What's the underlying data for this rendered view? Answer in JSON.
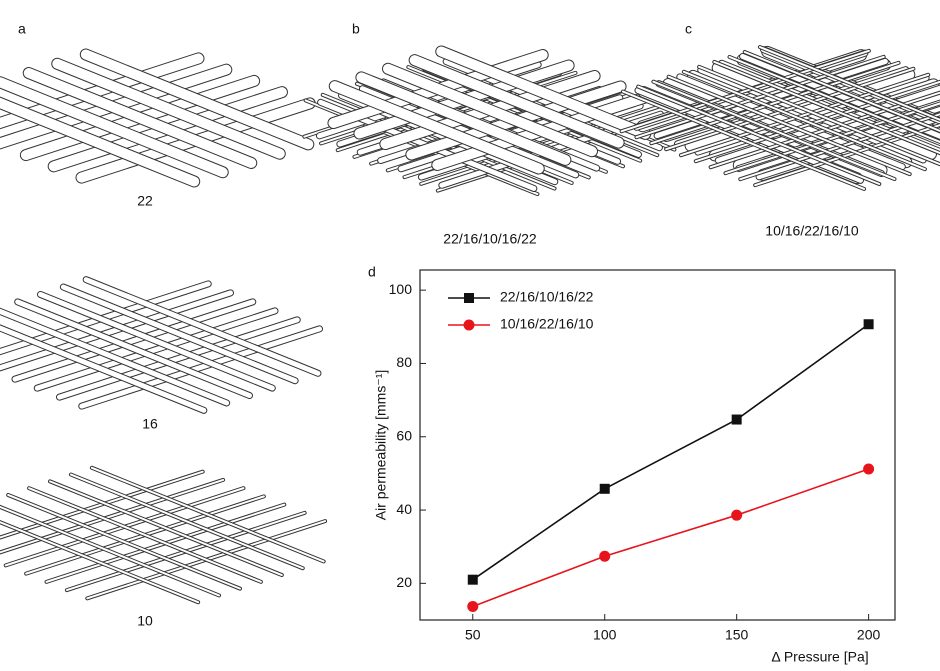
{
  "panels": {
    "a": {
      "label": "a",
      "caption_top": "22",
      "caption_middle": "16",
      "caption_bottom": "10"
    },
    "b": {
      "label": "b",
      "caption": "22/16/10/16/22"
    },
    "c": {
      "label": "c",
      "caption": "10/16/22/16/10"
    },
    "d": {
      "label": "d"
    }
  },
  "chart_data": {
    "type": "line",
    "x_label": "Δ Pressure [Pa]",
    "y_label": "Air permeability [mms⁻¹]",
    "x": [
      50,
      100,
      150,
      200
    ],
    "series": [
      {
        "name": "22/16/10/16/22",
        "color": "#111111",
        "marker": "square",
        "values": [
          21,
          45.8,
          64.7,
          90.7
        ]
      },
      {
        "name": "10/16/22/16/10",
        "color": "#e8141c",
        "marker": "circle",
        "values": [
          13.7,
          27.4,
          38.6,
          51.2
        ]
      }
    ],
    "xlim": [
      30,
      210
    ],
    "ylim": [
      10,
      105.5
    ],
    "xticks": [
      50,
      100,
      150,
      200
    ],
    "yticks": [
      20,
      40,
      60,
      80,
      100
    ],
    "grid": false,
    "legend": "upper left"
  }
}
